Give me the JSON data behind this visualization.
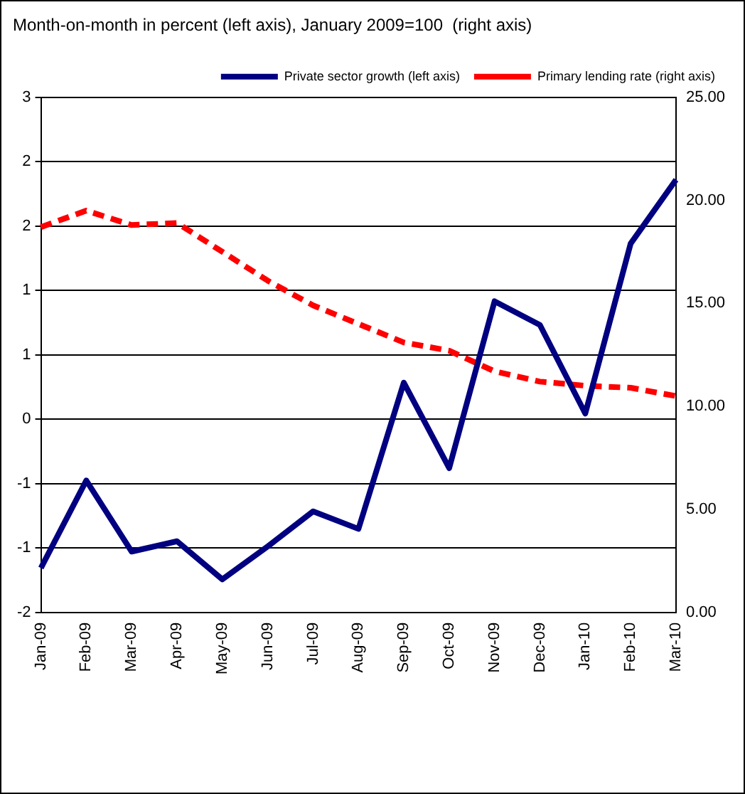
{
  "chart_data": {
    "type": "line",
    "title": "Month-on-month in percent (left axis), January 2009=100  (right axis)",
    "categories": [
      "Jan-09",
      "Feb-09",
      "Mar-09",
      "Apr-09",
      "May-09",
      "Jun-09",
      "Jul-09",
      "Aug-09",
      "Sep-09",
      "Oct-09",
      "Nov-09",
      "Dec-09",
      "Jan-10",
      "Feb-10",
      "Mar-10"
    ],
    "series": [
      {
        "name": "Private sector growth (left axis)",
        "color": "#000080",
        "line_style": "solid",
        "values": [
          -1.57,
          -0.72,
          -1.41,
          -1.31,
          -1.68,
          -1.36,
          -1.02,
          -1.19,
          0.23,
          -0.6,
          1.02,
          0.79,
          -0.07,
          1.58,
          2.2
        ]
      },
      {
        "name": "Primary lending rate (right axis)",
        "color": "#ff0000",
        "line_style": "dashed",
        "axis": "y2",
        "values": [
          18.7,
          19.5,
          18.8,
          18.9,
          17.5,
          16.1,
          14.9,
          14.0,
          13.1,
          12.7,
          11.7,
          11.2,
          11.0,
          10.9,
          10.5
        ]
      }
    ],
    "ylim": [
      -2,
      3
    ],
    "yticks": [
      {
        "value": -2,
        "label": "-2"
      },
      {
        "value": -1.375,
        "label": "-1"
      },
      {
        "value": -0.75,
        "label": "-1"
      },
      {
        "value": -0.125,
        "label": "0"
      },
      {
        "value": 0.5,
        "label": "1"
      },
      {
        "value": 1.125,
        "label": "1"
      },
      {
        "value": 1.75,
        "label": "2"
      },
      {
        "value": 2.375,
        "label": "2"
      },
      {
        "value": 3,
        "label": "3"
      }
    ],
    "y2lim": [
      0,
      25
    ],
    "y2ticks": [
      {
        "value": 0,
        "label": "0.00"
      },
      {
        "value": 5,
        "label": "5.00"
      },
      {
        "value": 10,
        "label": "10.00"
      },
      {
        "value": 15,
        "label": "15.00"
      },
      {
        "value": 20,
        "label": "20.00"
      },
      {
        "value": 25,
        "label": "25.00"
      }
    ],
    "grid": "y",
    "legend": "top",
    "marker": "none"
  }
}
